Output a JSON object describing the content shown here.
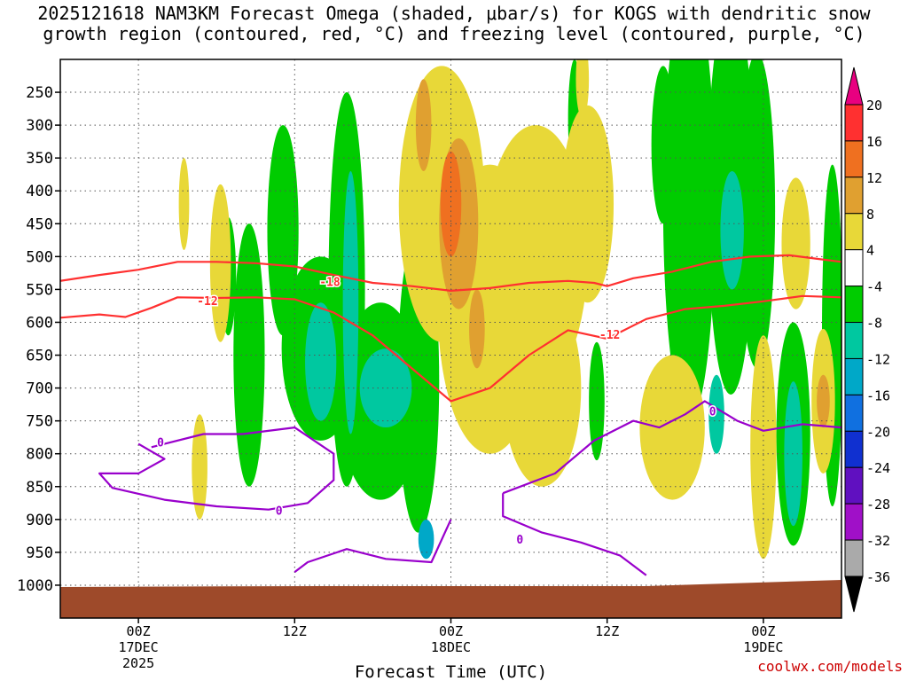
{
  "title_line1": "2025121618 NAM3KM Forecast Omega (shaded, μbar/s) for KOGS with dendritic snow",
  "title_line2": "growth region (contoured, red, °C) and freezing level (contoured, purple, °C)",
  "credit": "coolwx.com/models",
  "chart_data": {
    "type": "heatmap",
    "title": "2025121618 NAM3KM Forecast Omega (shaded, μbar/s) for KOGS with dendritic snow growth region (contoured, red, °C) and freezing level (contoured, purple, °C)",
    "xlabel": "Forecast Time (UTC)",
    "ylabel": "",
    "x_ticks": [
      {
        "hour": 6,
        "label": "00Z",
        "sub1": "17DEC",
        "sub2": "2025"
      },
      {
        "hour": 18,
        "label": "12Z",
        "sub1": "",
        "sub2": ""
      },
      {
        "hour": 30,
        "label": "00Z",
        "sub1": "18DEC",
        "sub2": ""
      },
      {
        "hour": 42,
        "label": "12Z",
        "sub1": "",
        "sub2": ""
      },
      {
        "hour": 54,
        "label": "00Z",
        "sub1": "19DEC",
        "sub2": ""
      }
    ],
    "xlim": [
      0,
      60
    ],
    "y_ticks": [
      250,
      300,
      350,
      400,
      450,
      500,
      550,
      600,
      650,
      700,
      750,
      800,
      850,
      900,
      950,
      1000
    ],
    "ylim": [
      1050,
      200
    ],
    "colorbar": {
      "labels": [
        "20",
        "16",
        "12",
        "8",
        "4",
        "-4",
        "-8",
        "-12",
        "-16",
        "-20",
        "-24",
        "-28",
        "-32",
        "-36"
      ],
      "colors": [
        "#e80080",
        "#ff3030",
        "#ef7020",
        "#e0a030",
        "#e8d838",
        "#ffffff",
        "#00cc00",
        "#00c8a0",
        "#00a8c8",
        "#1070e0",
        "#1030d0",
        "#6010c0",
        "#a010c8",
        "#aaaaaa",
        "#000000"
      ]
    },
    "shading": [
      {
        "color": "#00cc00",
        "x": 17.1,
        "y": 460,
        "rx": 1.2,
        "ry": 160
      },
      {
        "color": "#00cc00",
        "x": 22.0,
        "y": 550,
        "rx": 1.4,
        "ry": 300
      },
      {
        "color": "#00cc00",
        "x": 20.0,
        "y": 640,
        "rx": 3.0,
        "ry": 140
      },
      {
        "color": "#00cc00",
        "x": 24.6,
        "y": 720,
        "rx": 3.2,
        "ry": 150
      },
      {
        "color": "#00cc00",
        "x": 27.5,
        "y": 690,
        "rx": 1.6,
        "ry": 230
      },
      {
        "color": "#00cc00",
        "x": 14.5,
        "y": 650,
        "rx": 1.2,
        "ry": 200
      },
      {
        "color": "#00cc00",
        "x": 12.9,
        "y": 530,
        "rx": 0.6,
        "ry": 90
      },
      {
        "color": "#00c8a0",
        "x": 22.3,
        "y": 570,
        "rx": 0.6,
        "ry": 200
      },
      {
        "color": "#00c8a0",
        "x": 20.0,
        "y": 660,
        "rx": 1.2,
        "ry": 90
      },
      {
        "color": "#00c8a0",
        "x": 25.0,
        "y": 700,
        "rx": 2.0,
        "ry": 60
      },
      {
        "color": "#00cc00",
        "x": 48.3,
        "y": 420,
        "rx": 2.0,
        "ry": 330
      },
      {
        "color": "#00cc00",
        "x": 51.5,
        "y": 410,
        "rx": 1.8,
        "ry": 300
      },
      {
        "color": "#00cc00",
        "x": 53.5,
        "y": 430,
        "rx": 1.4,
        "ry": 240
      },
      {
        "color": "#00cc00",
        "x": 46.3,
        "y": 330,
        "rx": 0.9,
        "ry": 120
      },
      {
        "color": "#00cc00",
        "x": 39.5,
        "y": 290,
        "rx": 0.5,
        "ry": 90
      },
      {
        "color": "#00cc00",
        "x": 41.2,
        "y": 720,
        "rx": 0.6,
        "ry": 90
      },
      {
        "color": "#00cc00",
        "x": 56.3,
        "y": 770,
        "rx": 1.3,
        "ry": 170
      },
      {
        "color": "#00cc00",
        "x": 59.3,
        "y": 620,
        "rx": 0.8,
        "ry": 260
      },
      {
        "color": "#00c8a0",
        "x": 51.6,
        "y": 460,
        "rx": 0.9,
        "ry": 90
      },
      {
        "color": "#00c8a0",
        "x": 56.3,
        "y": 800,
        "rx": 0.7,
        "ry": 110
      },
      {
        "color": "#00c8a0",
        "x": 50.4,
        "y": 740,
        "rx": 0.6,
        "ry": 60
      },
      {
        "color": "#00a8c8",
        "x": 28.1,
        "y": 930,
        "rx": 0.6,
        "ry": 30
      },
      {
        "color": "#e8d838",
        "x": 29.3,
        "y": 420,
        "rx": 3.3,
        "ry": 210
      },
      {
        "color": "#e8d838",
        "x": 33.0,
        "y": 580,
        "rx": 4.0,
        "ry": 220
      },
      {
        "color": "#e8d838",
        "x": 36.5,
        "y": 500,
        "rx": 4.0,
        "ry": 200
      },
      {
        "color": "#e8d838",
        "x": 37.0,
        "y": 700,
        "rx": 3.0,
        "ry": 150
      },
      {
        "color": "#e8d838",
        "x": 40.5,
        "y": 420,
        "rx": 2.0,
        "ry": 150
      },
      {
        "color": "#e8d838",
        "x": 47.0,
        "y": 760,
        "rx": 2.5,
        "ry": 110
      },
      {
        "color": "#e8d838",
        "x": 54.0,
        "y": 790,
        "rx": 1.0,
        "ry": 170
      },
      {
        "color": "#e8d838",
        "x": 56.5,
        "y": 480,
        "rx": 1.1,
        "ry": 100
      },
      {
        "color": "#e8d838",
        "x": 58.6,
        "y": 720,
        "rx": 0.9,
        "ry": 110
      },
      {
        "color": "#e8d838",
        "x": 12.3,
        "y": 510,
        "rx": 0.8,
        "ry": 120
      },
      {
        "color": "#e8d838",
        "x": 10.7,
        "y": 820,
        "rx": 0.6,
        "ry": 80
      },
      {
        "color": "#e8d838",
        "x": 40.1,
        "y": 230,
        "rx": 0.5,
        "ry": 60
      },
      {
        "color": "#e8d838",
        "x": 9.5,
        "y": 420,
        "rx": 0.4,
        "ry": 70
      },
      {
        "color": "#e0a030",
        "x": 30.6,
        "y": 450,
        "rx": 1.5,
        "ry": 130
      },
      {
        "color": "#e0a030",
        "x": 27.9,
        "y": 300,
        "rx": 0.6,
        "ry": 70
      },
      {
        "color": "#e0a030",
        "x": 32.0,
        "y": 610,
        "rx": 0.6,
        "ry": 60
      },
      {
        "color": "#e0a030",
        "x": 58.6,
        "y": 720,
        "rx": 0.5,
        "ry": 40
      },
      {
        "color": "#ef7020",
        "x": 30.0,
        "y": 420,
        "rx": 0.8,
        "ry": 80
      }
    ],
    "contours": [
      {
        "label": "-18",
        "color": "#ff3030",
        "points": [
          [
            0,
            537
          ],
          [
            3,
            528
          ],
          [
            6,
            520
          ],
          [
            9,
            508
          ],
          [
            12,
            508
          ],
          [
            15,
            510
          ],
          [
            18,
            515
          ],
          [
            21,
            528
          ],
          [
            24,
            540
          ],
          [
            27,
            545
          ],
          [
            30,
            552
          ],
          [
            33,
            548
          ],
          [
            36,
            540
          ],
          [
            39,
            537
          ],
          [
            41,
            540
          ],
          [
            42,
            545
          ],
          [
            44,
            533
          ],
          [
            47,
            523
          ],
          [
            50,
            508
          ],
          [
            53,
            500
          ],
          [
            56,
            498
          ],
          [
            58,
            503
          ],
          [
            60,
            508
          ]
        ],
        "labels_at": [
          [
            20.7,
            538
          ]
        ]
      },
      {
        "label": "-12",
        "color": "#ff3030",
        "points": [
          [
            0,
            593
          ],
          [
            3,
            588
          ],
          [
            5,
            592
          ],
          [
            7,
            578
          ],
          [
            9,
            562
          ],
          [
            12,
            563
          ],
          [
            15,
            562
          ],
          [
            18,
            565
          ],
          [
            21,
            585
          ],
          [
            24,
            620
          ],
          [
            27,
            670
          ],
          [
            30,
            720
          ],
          [
            33,
            700
          ],
          [
            36,
            650
          ],
          [
            39,
            612
          ],
          [
            42,
            625
          ],
          [
            45,
            595
          ],
          [
            48,
            580
          ],
          [
            51,
            575
          ],
          [
            54,
            568
          ],
          [
            57,
            560
          ],
          [
            60,
            562
          ]
        ],
        "labels_at": [
          [
            11.3,
            567
          ],
          [
            42.2,
            618
          ]
        ]
      },
      {
        "label": "0",
        "color": "#9900cc",
        "points": [
          [
            6,
            785
          ],
          [
            8,
            808
          ],
          [
            6,
            830
          ],
          [
            3,
            830
          ],
          [
            4,
            852
          ],
          [
            8,
            870
          ],
          [
            12,
            880
          ],
          [
            16,
            885
          ],
          [
            19,
            875
          ],
          [
            21,
            840
          ],
          [
            21,
            800
          ],
          [
            18,
            760
          ],
          [
            14,
            770
          ],
          [
            11,
            770
          ],
          [
            8,
            785
          ],
          [
            7,
            790
          ]
        ],
        "labels_at": [
          [
            7.7,
            782
          ],
          [
            16.8,
            886
          ]
        ]
      },
      {
        "label": "0",
        "color": "#9900cc",
        "points": [
          [
            30,
            900
          ],
          [
            28.5,
            965
          ],
          [
            25,
            960
          ],
          [
            22,
            945
          ],
          [
            19,
            965
          ],
          [
            18,
            980
          ]
        ],
        "labels_at": []
      },
      {
        "label": "0",
        "color": "#9900cc",
        "points": [
          [
            34,
            860
          ],
          [
            34,
            895
          ],
          [
            37,
            920
          ],
          [
            40,
            935
          ],
          [
            43,
            955
          ],
          [
            45,
            985
          ]
        ],
        "labels_at": [
          [
            35.3,
            930
          ]
        ]
      },
      {
        "label": "0",
        "color": "#9900cc",
        "points": [
          [
            34,
            860
          ],
          [
            38,
            830
          ],
          [
            41,
            780
          ],
          [
            44,
            750
          ],
          [
            46,
            760
          ],
          [
            48,
            740
          ],
          [
            49.5,
            720
          ],
          [
            52,
            750
          ],
          [
            54,
            765
          ],
          [
            57,
            755
          ],
          [
            60,
            760
          ]
        ],
        "labels_at": [
          [
            50.1,
            735
          ]
        ]
      }
    ],
    "terrain_color": "#9e4a2a",
    "terrain_top": 1000
  }
}
